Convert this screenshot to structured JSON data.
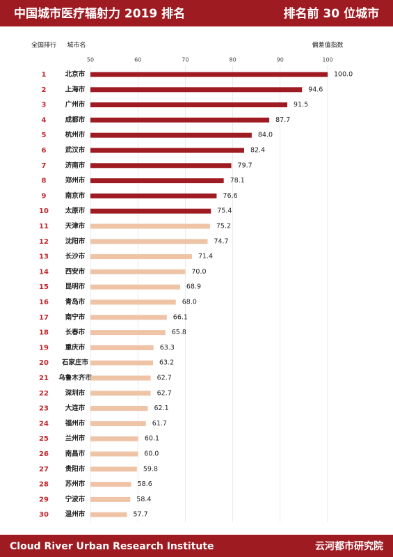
{
  "chart_data": {
    "type": "bar",
    "title": "中国城市医疗辐射力 2019 排名",
    "subtitle": "排名前 30 位城市",
    "rank_header": "全国排行",
    "city_header": "城市名",
    "value_header": "偏差值指数",
    "footer_left": "Cloud River Urban Research Institute",
    "footer_right": "云河都市研究院",
    "ranks": [
      1,
      2,
      3,
      4,
      5,
      6,
      7,
      8,
      9,
      10,
      11,
      12,
      13,
      14,
      15,
      16,
      17,
      18,
      19,
      20,
      21,
      22,
      23,
      24,
      25,
      26,
      27,
      28,
      29,
      30
    ],
    "categories": [
      "北京市",
      "上海市",
      "广州市",
      "成都市",
      "杭州市",
      "武汉市",
      "济南市",
      "郑州市",
      "南京市",
      "太原市",
      "天津市",
      "沈阳市",
      "长沙市",
      "西安市",
      "昆明市",
      "青岛市",
      "南宁市",
      "长春市",
      "重庆市",
      "石家庄市",
      "乌鲁木齐市",
      "深圳市",
      "大连市",
      "福州市",
      "兰州市",
      "南昌市",
      "贵阳市",
      "苏州市",
      "宁波市",
      "温州市"
    ],
    "values": [
      100.0,
      94.6,
      91.5,
      87.7,
      84.0,
      82.4,
      79.7,
      78.1,
      76.6,
      75.4,
      75.2,
      74.7,
      71.4,
      70.0,
      68.9,
      68.0,
      66.1,
      65.8,
      63.3,
      63.2,
      62.7,
      62.7,
      62.1,
      61.7,
      60.1,
      60.0,
      59.8,
      58.6,
      58.4,
      57.7
    ],
    "value_labels": [
      "100.0",
      "94.6",
      "91.5",
      "87.7",
      "84.0",
      "82.4",
      "79.7",
      "78.1",
      "76.6",
      "75.4",
      "75.2",
      "74.7",
      "71.4",
      "70.0",
      "68.9",
      "68.0",
      "66.1",
      "65.8",
      "63.3",
      "63.2",
      "62.7",
      "62.7",
      "62.1",
      "61.7",
      "60.1",
      "60.0",
      "59.8",
      "58.6",
      "58.4",
      "57.7"
    ],
    "bar_colors": [
      "#9e1b22",
      "#9e1b22",
      "#9e1b22",
      "#9e1b22",
      "#9e1b22",
      "#9e1b22",
      "#9e1b22",
      "#9e1b22",
      "#9e1b22",
      "#9e1b22",
      "#efc3a6",
      "#efc3a6",
      "#efc3a6",
      "#efc3a6",
      "#efc3a6",
      "#efc3a6",
      "#efc3a6",
      "#efc3a6",
      "#efc3a6",
      "#efc3a6",
      "#efc3a6",
      "#efc3a6",
      "#efc3a6",
      "#efc3a6",
      "#efc3a6",
      "#efc3a6",
      "#efc3a6",
      "#efc3a6",
      "#efc3a6",
      "#efc3a6"
    ],
    "xlim": [
      50,
      100
    ],
    "xticks": [
      50,
      60,
      70,
      80,
      90,
      100
    ],
    "grid": true
  }
}
